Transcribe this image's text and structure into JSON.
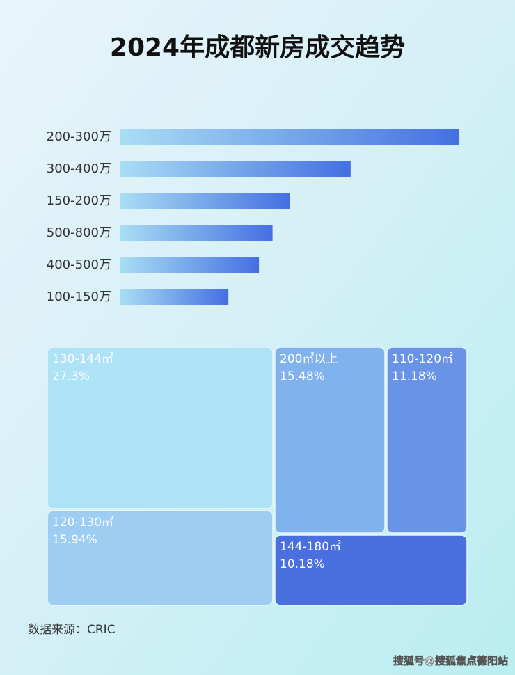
{
  "title": "2024年成都新房成交趋势",
  "source": "数据来源：CRIC",
  "watermark": "搜狐号@搜狐焦点德阳站",
  "chart_data": [
    {
      "type": "bar",
      "orientation": "horizontal",
      "categories": [
        "200-300万",
        "300-400万",
        "150-200万",
        "500-800万",
        "400-500万",
        "100-150万"
      ],
      "values": [
        100,
        68,
        50,
        45,
        41,
        32
      ],
      "xlim": [
        0,
        100
      ],
      "color": "#4470e0"
    },
    {
      "type": "treemap",
      "categories": [
        "130-144㎡",
        "120-130㎡",
        "200㎡以上",
        "110-120㎡",
        "144-180㎡"
      ],
      "values": [
        27.3,
        15.94,
        15.48,
        11.18,
        10.18
      ],
      "value_labels": [
        "27.3%",
        "15.94%",
        "15.48%",
        "11.18%",
        "10.18%"
      ],
      "colors": [
        "#ade2f7",
        "#9dcdf2",
        "#80b2ed",
        "#6893e6",
        "#4a6fdf"
      ]
    }
  ]
}
